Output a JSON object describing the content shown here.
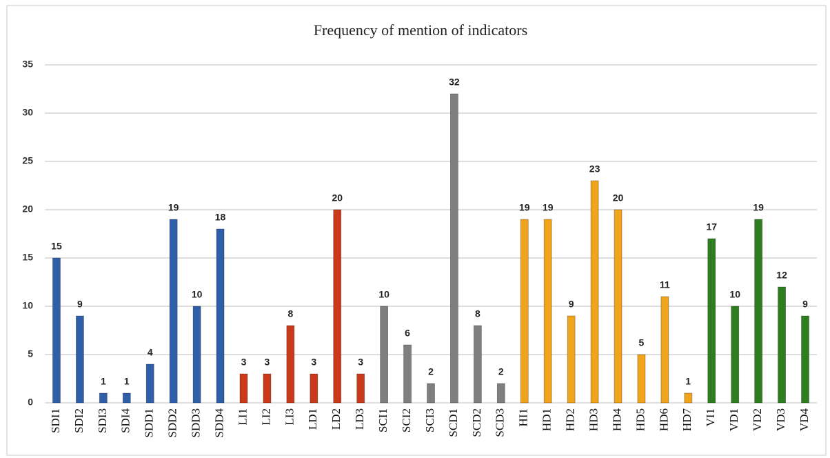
{
  "chart_data": {
    "type": "bar",
    "title": "Frequency of mention of indicators",
    "categories": [
      "SDI1",
      "SDI2",
      "SDI3",
      "SDI4",
      "SDD1",
      "SDD2",
      "SDD3",
      "SDD4",
      "LI1",
      "LI2",
      "LI3",
      "LD1",
      "LD2",
      "LD3",
      "SCI1",
      "SCI2",
      "SCI3",
      "SCD1",
      "SCD2",
      "SCD3",
      "HI1",
      "HD1",
      "HD2",
      "HD3",
      "HD4",
      "HD5",
      "HD6",
      "HD7",
      "VI1",
      "VD1",
      "VD2",
      "VD3",
      "VD4"
    ],
    "values": [
      15,
      9,
      1,
      1,
      4,
      19,
      10,
      18,
      3,
      3,
      8,
      3,
      20,
      3,
      10,
      6,
      2,
      32,
      8,
      2,
      19,
      19,
      9,
      23,
      20,
      5,
      11,
      1,
      17,
      10,
      19,
      12,
      9
    ],
    "colors": [
      "#2e5fa8",
      "#2e5fa8",
      "#2e5fa8",
      "#2e5fa8",
      "#2e5fa8",
      "#2e5fa8",
      "#2e5fa8",
      "#2e5fa8",
      "#c9391a",
      "#c9391a",
      "#c9391a",
      "#c9391a",
      "#c9391a",
      "#c9391a",
      "#7f7f7f",
      "#7f7f7f",
      "#7f7f7f",
      "#7f7f7f",
      "#7f7f7f",
      "#7f7f7f",
      "#f0a41c",
      "#f0a41c",
      "#f0a41c",
      "#f0a41c",
      "#f0a41c",
      "#f0a41c",
      "#f0a41c",
      "#f0a41c",
      "#2e7d1e",
      "#2e7d1e",
      "#2e7d1e",
      "#2e7d1e",
      "#2e7d1e"
    ],
    "ylim": [
      0,
      35
    ],
    "yticks": [
      0,
      5,
      10,
      15,
      20,
      25,
      30,
      35
    ],
    "grid": true
  }
}
